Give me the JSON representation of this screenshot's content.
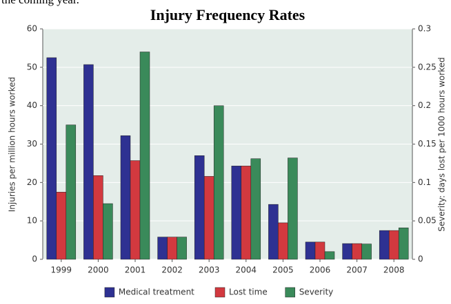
{
  "page_text": "the coming year.",
  "chart_data": {
    "type": "bar",
    "title": "Injury Frequency Rates",
    "ylabel": "Injuries per million hours worked",
    "y2label": "Severity: days lost per 1000 hours worked",
    "categories": [
      "1999",
      "2000",
      "2001",
      "2002",
      "2003",
      "2004",
      "2005",
      "2006",
      "2007",
      "2008"
    ],
    "series": [
      {
        "name": "Medical treatment",
        "color": "#2e3192",
        "values": [
          52.5,
          50.7,
          32.2,
          5.8,
          27,
          24.3,
          14.3,
          4.5,
          4.1,
          7.5
        ]
      },
      {
        "name": "Lost time",
        "color": "#d2393f",
        "values": [
          17.5,
          21.8,
          25.7,
          5.8,
          21.6,
          24.3,
          9.5,
          4.5,
          4.1,
          7.5
        ]
      },
      {
        "name": "Severity",
        "color": "#3a8a5a",
        "axis": "y2",
        "values": [
          0.175,
          0.0725,
          0.27,
          0.029,
          0.2,
          0.131,
          0.132,
          0.01,
          0.02,
          0.041
        ]
      }
    ],
    "ylim": [
      0,
      60
    ],
    "yticks": [
      0,
      10,
      20,
      30,
      40,
      50,
      60
    ],
    "y2lim": [
      0,
      0.3
    ],
    "y2ticks": [
      0,
      0.05,
      0.1,
      0.15,
      0.2,
      0.25,
      0.3
    ],
    "grid": true,
    "legend": "bottom"
  }
}
